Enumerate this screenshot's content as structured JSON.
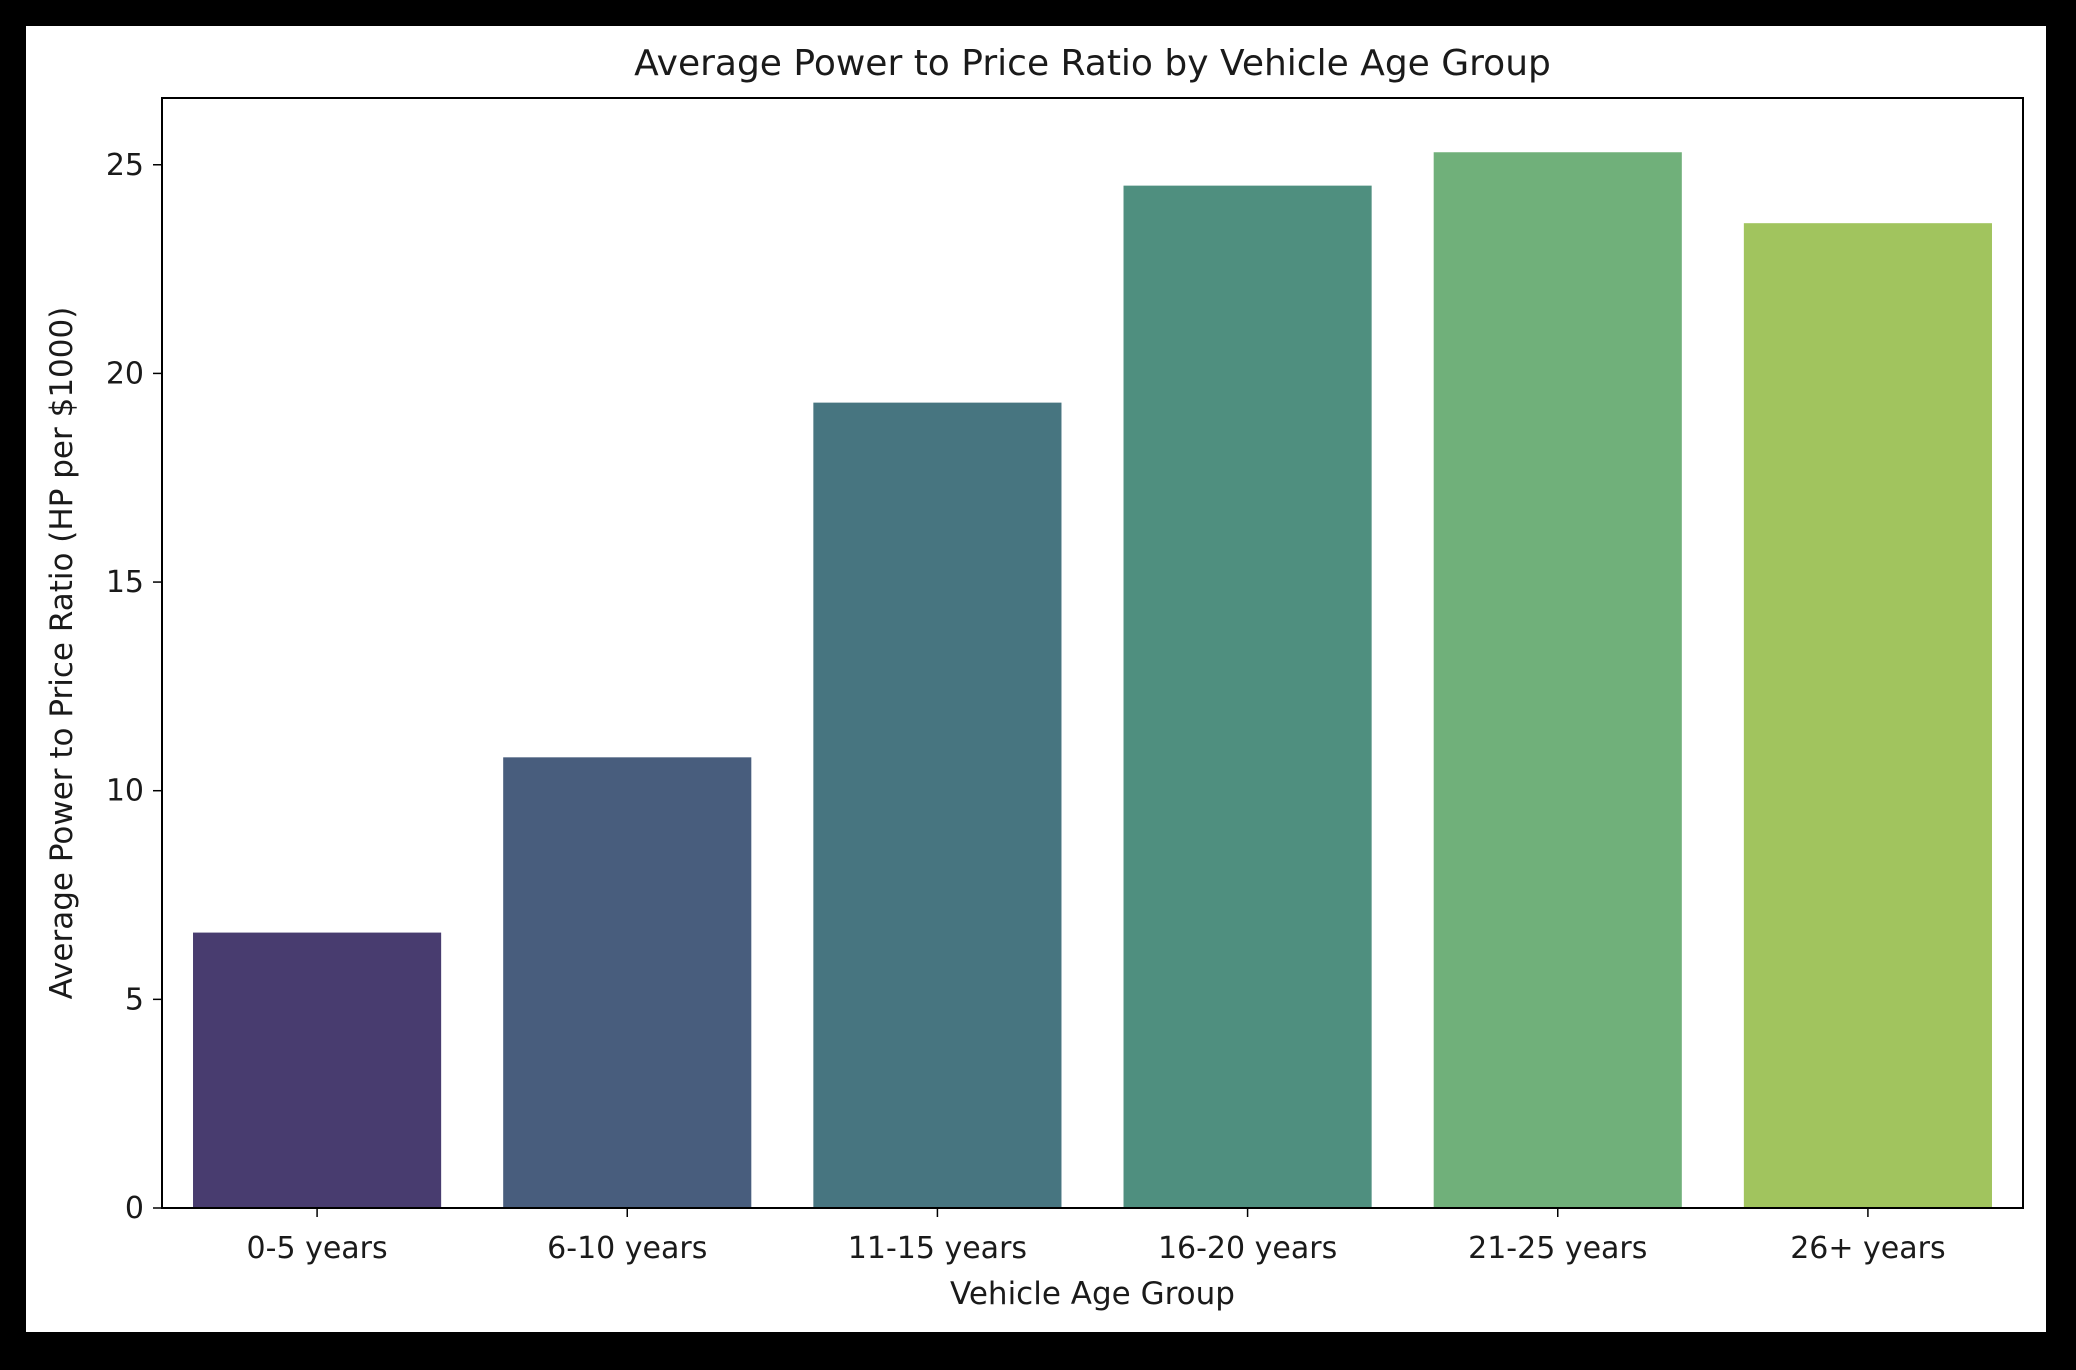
{
  "chart_data": {
    "type": "bar",
    "title": "Average Power to Price Ratio by Vehicle Age Group",
    "xlabel": "Vehicle Age Group",
    "ylabel": "Average Power to Price Ratio (HP per $1000)",
    "categories": [
      "0-5 years",
      "6-10 years",
      "11-15 years",
      "16-20 years",
      "21-25 years",
      "26+ years"
    ],
    "values": [
      6.6,
      10.8,
      19.3,
      24.5,
      25.3,
      23.6
    ],
    "colors": [
      "#483c6f",
      "#485d7d",
      "#477580",
      "#4f8f7f",
      "#70b07a",
      "#a1c45e"
    ],
    "ylim": [
      0,
      26.6
    ],
    "yticks": [
      "0",
      "5",
      "10",
      "15",
      "20",
      "25"
    ],
    "ytick_values": [
      0,
      5,
      10,
      15,
      20,
      25
    ],
    "grid": false,
    "legend": "none"
  }
}
